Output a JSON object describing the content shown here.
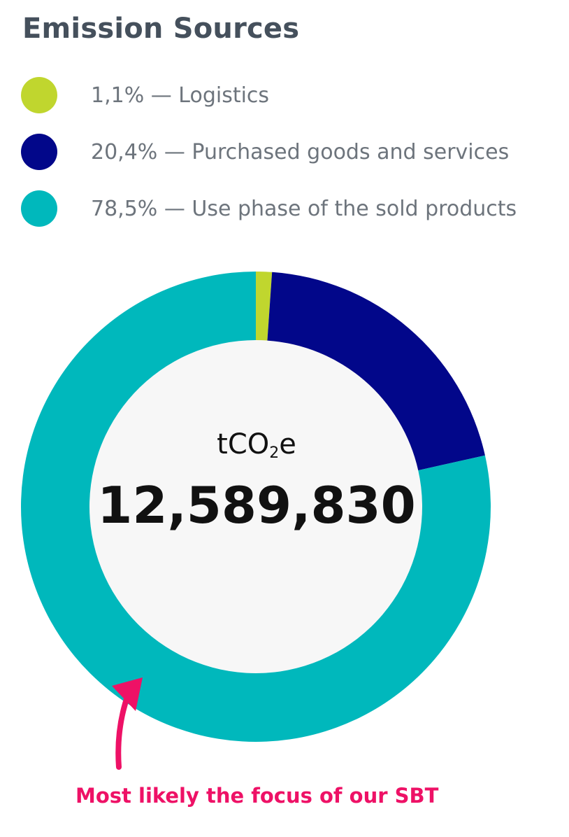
{
  "title": "Emission Sources",
  "legend": [
    {
      "label": "1,1% — Logistics",
      "color": "#c0d62e",
      "icon": "legend-dot-icon"
    },
    {
      "label": "20,4% — Purchased goods and services",
      "color": "#02078a",
      "icon": "legend-dot-icon"
    },
    {
      "label": "78,5% — Use phase of the sold products",
      "color": "#00b8bc",
      "icon": "legend-dot-icon"
    }
  ],
  "center": {
    "unit_prefix": "tCO",
    "unit_subscript": "2",
    "unit_suffix": "e",
    "value": "12,589,830"
  },
  "annotation": {
    "text": "Most likely the focus of our SBT",
    "color": "#ee1166",
    "icon": "arrow-up-icon"
  },
  "chart_data": {
    "type": "pie",
    "variant": "donut",
    "title": "Emission Sources",
    "categories": [
      "Logistics",
      "Purchased goods and services",
      "Use phase of the sold products"
    ],
    "values": [
      1.1,
      20.4,
      78.5
    ],
    "value_unit": "%",
    "colors": [
      "#c0d62e",
      "#02078a",
      "#00b8bc"
    ],
    "center_label": "tCO₂e",
    "center_value": 12589830,
    "legend_position": "top-left",
    "start_angle_deg": 0,
    "direction": "clockwise"
  }
}
